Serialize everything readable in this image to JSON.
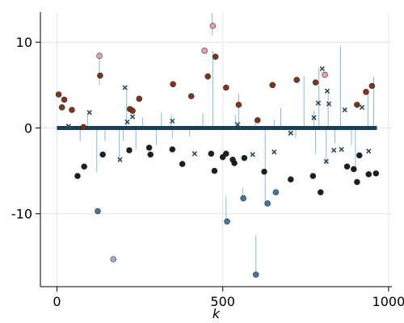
{
  "chart_data": {
    "type": "scatter",
    "title": "",
    "xlabel": "k",
    "ylabel": "",
    "xlim": [
      -50,
      1010
    ],
    "ylim": [
      -18.5,
      13.5
    ],
    "x_ticks": [
      0,
      500,
      1000
    ],
    "y_ticks": [
      -10,
      0,
      10
    ],
    "x_tick_labels": [
      "0",
      "500",
      "1000"
    ],
    "y_tick_labels": [
      "-10",
      "0",
      "10"
    ],
    "grid": true,
    "legend": "none",
    "zero_line_color": "#1c3f55",
    "colors": {
      "positive": "#7a2a10",
      "positive_light": "#e79b9b",
      "negative": "#111111",
      "negative_blue": "#3a6f97",
      "negative_light": "#9aa8cc",
      "x_marker": "#2b4a5c",
      "stem": "#6bb3d6"
    },
    "series": [
      {
        "marker": "circle",
        "color": "#7a2a10",
        "points": [
          [
            5,
            3.9
          ],
          [
            15,
            2.4
          ],
          [
            22,
            3.3
          ],
          [
            45,
            2.1
          ],
          [
            130,
            6.1
          ],
          [
            220,
            2.2
          ],
          [
            228,
            2.0
          ],
          [
            248,
            3.4
          ],
          [
            350,
            5.1
          ],
          [
            405,
            3.7
          ],
          [
            455,
            6.0
          ],
          [
            478,
            8.3
          ],
          [
            510,
            4.7
          ],
          [
            548,
            2.7
          ],
          [
            605,
            0.9
          ],
          [
            650,
            5.0
          ],
          [
            723,
            5.6
          ],
          [
            780,
            5.3
          ],
          [
            905,
            2.7
          ],
          [
            932,
            4.2
          ],
          [
            950,
            4.9
          ],
          [
            80,
            0.1
          ]
        ]
      },
      {
        "marker": "circle",
        "color": "#e79b9b",
        "points": [
          [
            128,
            8.4
          ],
          [
            445,
            9.0
          ],
          [
            470,
            11.9
          ],
          [
            808,
            6.2
          ]
        ]
      },
      {
        "marker": "circle",
        "color": "#111111",
        "points": [
          [
            62,
            -5.6
          ],
          [
            82,
            -4.5
          ],
          [
            138,
            -3.1
          ],
          [
            218,
            -2.6
          ],
          [
            278,
            -2.3
          ],
          [
            282,
            -3.1
          ],
          [
            348,
            -2.5
          ],
          [
            378,
            -4.2
          ],
          [
            465,
            -3.0
          ],
          [
            475,
            -5.0
          ],
          [
            500,
            -3.4
          ],
          [
            510,
            -3.0
          ],
          [
            530,
            -3.7
          ],
          [
            535,
            -4.1
          ],
          [
            565,
            -3.5
          ],
          [
            625,
            -5.1
          ],
          [
            705,
            -6.0
          ],
          [
            772,
            -5.6
          ],
          [
            795,
            -7.5
          ],
          [
            875,
            -4.5
          ],
          [
            895,
            -4.8
          ],
          [
            905,
            -6.3
          ],
          [
            912,
            -3.2
          ],
          [
            940,
            -5.4
          ],
          [
            962,
            -5.3
          ]
        ]
      },
      {
        "marker": "circle",
        "color": "#3a6f97",
        "points": [
          [
            123,
            -9.7
          ],
          [
            513,
            -10.9
          ],
          [
            562,
            -8.2
          ],
          [
            600,
            -17.1
          ],
          [
            635,
            -8.8
          ],
          [
            660,
            -7.5
          ]
        ]
      },
      {
        "marker": "circle",
        "color": "#9aa8cc",
        "points": [
          [
            170,
            -15.3
          ]
        ]
      },
      {
        "marker": "x",
        "color": "#2b4a5c",
        "points": [
          [
            35,
            0.2
          ],
          [
            98,
            1.8
          ],
          [
            190,
            -3.7
          ],
          [
            205,
            4.7
          ],
          [
            212,
            0.7
          ],
          [
            228,
            1.3
          ],
          [
            348,
            0.8
          ],
          [
            415,
            -3.0
          ],
          [
            545,
            0.4
          ],
          [
            590,
            -3.1
          ],
          [
            655,
            -2.8
          ],
          [
            705,
            -0.6
          ],
          [
            775,
            1.2
          ],
          [
            788,
            2.9
          ],
          [
            800,
            6.9
          ],
          [
            812,
            -3.9
          ],
          [
            815,
            4.3
          ],
          [
            820,
            2.8
          ],
          [
            835,
            -2.6
          ],
          [
            858,
            -2.5
          ],
          [
            868,
            2.1
          ],
          [
            920,
            2.4
          ],
          [
            940,
            -2.7
          ]
        ]
      }
    ],
    "stems": [
      [
        120,
        0,
        -5.2
      ],
      [
        128,
        5.0,
        8.5
      ],
      [
        188,
        0,
        -3.9
      ],
      [
        210,
        0,
        4.6
      ],
      [
        315,
        0,
        1.8
      ],
      [
        348,
        0,
        -1.2
      ],
      [
        468,
        13.4,
        10.8
      ],
      [
        510,
        -8.0,
        -10.9
      ],
      [
        548,
        0,
        4.0
      ],
      [
        560,
        -7.0,
        -8.5
      ],
      [
        600,
        -12.5,
        -17.1
      ],
      [
        628,
        0,
        -8.8
      ],
      [
        675,
        0,
        2.3
      ],
      [
        700,
        0,
        -1.0
      ],
      [
        745,
        0,
        6.0
      ],
      [
        775,
        0,
        2.0
      ],
      [
        790,
        0,
        7.0
      ],
      [
        812,
        0,
        -4.3
      ],
      [
        818,
        0,
        4.2
      ],
      [
        855,
        9.5,
        0
      ],
      [
        900,
        0,
        -5.0
      ],
      [
        938,
        0,
        4.2
      ],
      [
        955,
        6.0,
        0
      ],
      [
        888,
        0,
        -2.0
      ],
      [
        838,
        0,
        -1.8
      ],
      [
        780,
        0,
        -3.0
      ],
      [
        720,
        0,
        -1.2
      ],
      [
        655,
        0,
        1.0
      ],
      [
        598,
        0,
        0.9
      ],
      [
        538,
        0,
        1.5
      ],
      [
        470,
        0,
        9.0
      ],
      [
        440,
        0,
        1.7
      ],
      [
        400,
        0,
        -1.0
      ],
      [
        345,
        0,
        1.6
      ],
      [
        300,
        0,
        -2.0
      ],
      [
        258,
        0,
        1.2
      ],
      [
        238,
        0,
        -2.5
      ],
      [
        200,
        0,
        -1.5
      ],
      [
        145,
        0,
        -1.5
      ],
      [
        92,
        0,
        1.5
      ],
      [
        70,
        0,
        -1.5
      ],
      [
        30,
        0,
        0.5
      ]
    ]
  }
}
